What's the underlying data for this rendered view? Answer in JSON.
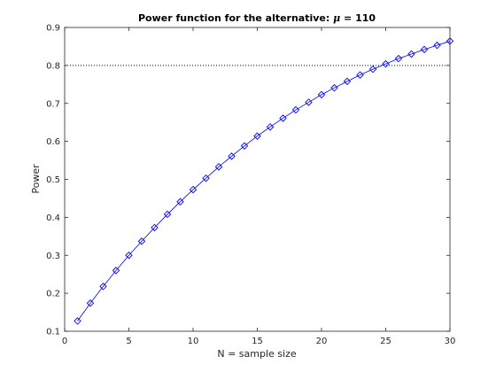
{
  "chart_data": {
    "type": "line",
    "title_prefix": "Power function for the alternative: ",
    "title_symbol": "μ",
    "title_suffix": " = 110",
    "xlabel": "N = sample size",
    "ylabel": "Power",
    "xlim": [
      0,
      30
    ],
    "ylim": [
      0.1,
      0.9
    ],
    "xticks": [
      0,
      5,
      10,
      15,
      20,
      25,
      30
    ],
    "yticks": [
      0.1,
      0.2,
      0.3,
      0.4,
      0.5,
      0.6,
      0.7,
      0.8,
      0.9
    ],
    "ytick_labels": [
      "0.1",
      "0.2",
      "0.3",
      "0.4",
      "0.5",
      "0.6",
      "0.7",
      "0.8",
      "0.9"
    ],
    "grid": false,
    "reference_line": {
      "y": 0.8,
      "style": "dotted",
      "color": "#000000"
    },
    "series": [
      {
        "color": "#0000ff",
        "marker": "diamond",
        "x": [
          1,
          2,
          3,
          4,
          5,
          6,
          7,
          8,
          9,
          10,
          11,
          12,
          13,
          14,
          15,
          16,
          17,
          18,
          19,
          20,
          21,
          22,
          23,
          24,
          25,
          26,
          27,
          28,
          29,
          30
        ],
        "y": [
          0.127,
          0.174,
          0.218,
          0.26,
          0.3,
          0.337,
          0.373,
          0.408,
          0.441,
          0.473,
          0.503,
          0.533,
          0.561,
          0.588,
          0.614,
          0.638,
          0.661,
          0.683,
          0.703,
          0.723,
          0.741,
          0.758,
          0.775,
          0.79,
          0.804,
          0.818,
          0.83,
          0.842,
          0.853,
          0.864
        ]
      }
    ]
  }
}
